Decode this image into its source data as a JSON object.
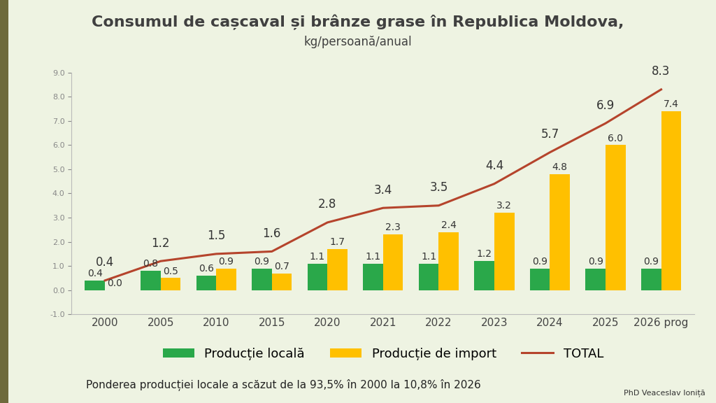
{
  "chart_data": {
    "type": "bar",
    "title": "Consumul de cașcaval și brânze grase în Republica Moldova,",
    "subtitle": "kg/persoană/anual",
    "categories": [
      "2000",
      "2005",
      "2010",
      "2015",
      "2020",
      "2021",
      "2022",
      "2023",
      "2024",
      "2025",
      "2026 prog"
    ],
    "series": [
      {
        "name": "Producție locală",
        "type": "bar",
        "color": "#2aa84a",
        "values": [
          0.4,
          0.8,
          0.6,
          0.9,
          1.1,
          1.1,
          1.1,
          1.2,
          0.9,
          0.9,
          0.9
        ]
      },
      {
        "name": "Producție de import",
        "type": "bar",
        "color": "#ffc000",
        "values": [
          0.0,
          0.5,
          0.9,
          0.7,
          1.7,
          2.3,
          2.4,
          3.2,
          4.8,
          6.0,
          7.4
        ]
      },
      {
        "name": "TOTAL",
        "type": "line",
        "color": "#b5442c",
        "line_style": "solid",
        "values": [
          0.4,
          1.2,
          1.5,
          1.6,
          2.8,
          3.4,
          3.5,
          4.4,
          5.7,
          6.9,
          8.3
        ]
      }
    ],
    "ylim": [
      -1,
      9
    ],
    "yticks": [
      {
        "value": -1,
        "label": "-1.0"
      },
      {
        "value": 0,
        "label": "0.0"
      },
      {
        "value": 1,
        "label": "1.0"
      },
      {
        "value": 2,
        "label": "2.0"
      },
      {
        "value": 3,
        "label": "3.0"
      },
      {
        "value": 4,
        "label": "4.0"
      },
      {
        "value": 5,
        "label": "5.0"
      },
      {
        "value": 6,
        "label": "6.0"
      },
      {
        "value": 7,
        "label": "7.0"
      },
      {
        "value": 8,
        "label": "8.0"
      },
      {
        "value": 9,
        "label": "9.0"
      }
    ],
    "grid": false,
    "legend": "bottom",
    "data_labels": true,
    "annotations": [
      "Ponderea producției locale a scăzut de la 93,5% în 2000 la 10,8% în 2026",
      "PhD Veaceslav Ioniță"
    ]
  }
}
